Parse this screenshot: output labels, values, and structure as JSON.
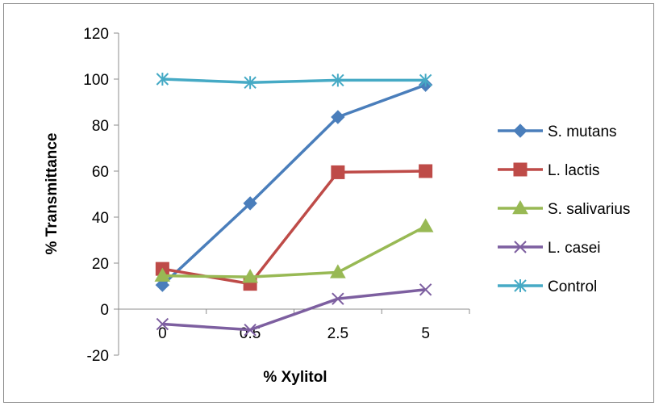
{
  "chart_data": {
    "type": "line",
    "title": "",
    "xlabel": "% Xylitol",
    "ylabel": "% Transmittance",
    "categories": [
      "0",
      "0.5",
      "2.5",
      "5"
    ],
    "ylim": [
      -20,
      120
    ],
    "yticks": [
      -20,
      0,
      20,
      40,
      60,
      80,
      100,
      120
    ],
    "grid": false,
    "legend_position": "right",
    "series": [
      {
        "name": "S. mutans",
        "color": "#4a7ebb",
        "marker": "diamond",
        "values": [
          10.5,
          46,
          83.5,
          97.5
        ]
      },
      {
        "name": "L. lactis",
        "color": "#be4b48",
        "marker": "square",
        "values": [
          17.5,
          11,
          59.5,
          60
        ]
      },
      {
        "name": "S. salivarius",
        "color": "#98b954",
        "marker": "triangle",
        "values": [
          14.5,
          14,
          16,
          36
        ]
      },
      {
        "name": "L. casei",
        "color": "#7d5fa0",
        "marker": "x",
        "values": [
          -6.5,
          -9,
          4.5,
          8.5
        ]
      },
      {
        "name": "Control",
        "color": "#46aac5",
        "marker": "star",
        "values": [
          100,
          98.5,
          99.5,
          99.5
        ]
      }
    ]
  }
}
